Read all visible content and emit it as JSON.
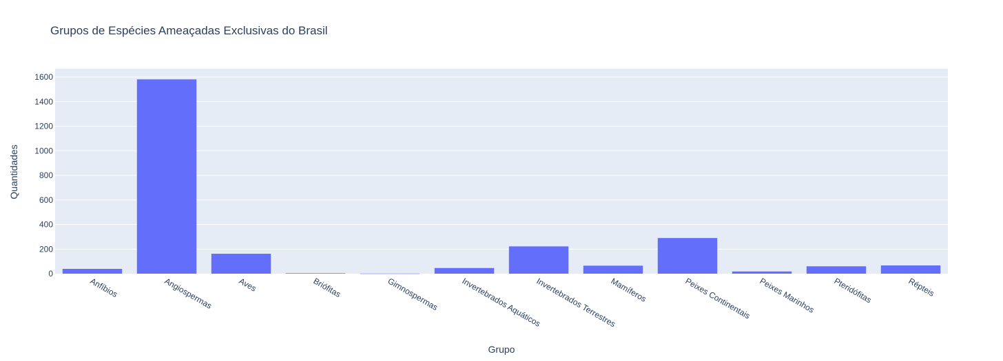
{
  "chart_data": {
    "type": "bar",
    "title": "Grupos de Espécies Ameaçadas Exclusivas do Brasil",
    "xlabel": "Grupo",
    "ylabel": "Quantidades",
    "categories": [
      "Anfíbios",
      "Angiospermas",
      "Aves",
      "Briófitas",
      "Gimnospermas",
      "Invertebrados Aquáticos",
      "Invertebrados Terrestres",
      "Mamíferos",
      "Peixes Continentais",
      "Peixes Marinhos",
      "Pteridófitas",
      "Répteis"
    ],
    "values": [
      39,
      1581,
      162,
      4,
      1,
      46,
      222,
      65,
      290,
      18,
      60,
      67
    ],
    "ylim": [
      0,
      1600
    ],
    "yticks": [
      "0",
      "200",
      "400",
      "600",
      "800",
      "1000",
      "1200",
      "1400",
      "1600"
    ],
    "grid": true,
    "colors": {
      "bar": "#636efa",
      "plot_bg": "#e5ecf6",
      "grid": "#ffffff",
      "text": "#2a3f5f"
    }
  }
}
